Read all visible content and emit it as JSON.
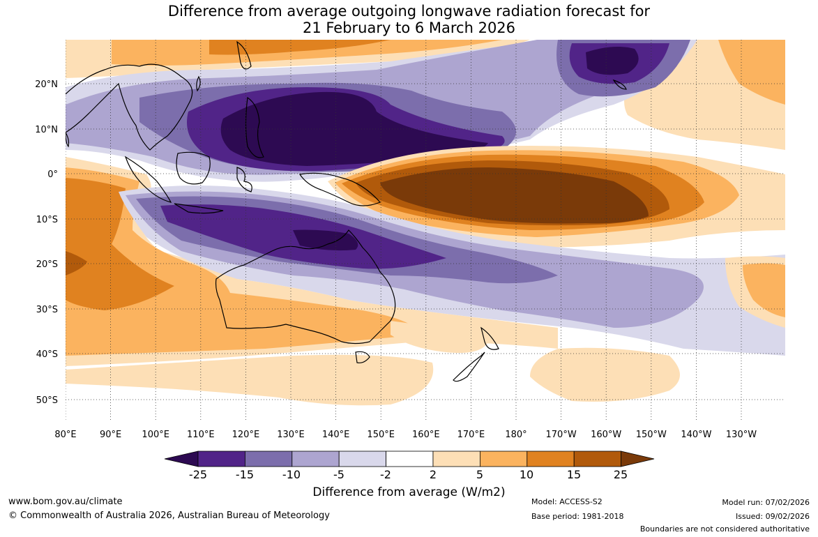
{
  "title": {
    "line1": "Difference from average outgoing longwave radiation forecast for",
    "line2": "21 February to 6 March 2026"
  },
  "map": {
    "lon_labels": [
      "80°E",
      "90°E",
      "100°E",
      "110°E",
      "120°E",
      "130°E",
      "140°E",
      "150°E",
      "160°E",
      "170°E",
      "180°",
      "170°W",
      "160°W",
      "150°W",
      "140°W",
      "130°W"
    ],
    "lat_labels": [
      "20°N",
      "10°N",
      "0°",
      "10°S",
      "20°S",
      "30°S",
      "40°S",
      "50°S"
    ],
    "lon_range": [
      80,
      232
    ],
    "lat_range": [
      -55,
      30
    ]
  },
  "colorbar": {
    "colors": [
      "#2d0a52",
      "#512488",
      "#7c6eac",
      "#ada5d0",
      "#d9d8eb",
      "#ffffff",
      "#fddfb6",
      "#fbb35f",
      "#e08220",
      "#b15a0b",
      "#7a3a09"
    ],
    "tick_labels": [
      "-25",
      "-15",
      "-10",
      "-5",
      "-2",
      "2",
      "5",
      "10",
      "15",
      "25"
    ],
    "title": "Difference from average (W/m2)"
  },
  "footer": {
    "website": "www.bom.gov.au/climate",
    "copyright": "© Commonwealth of Australia 2026, Australian Bureau of Meteorology",
    "model": "Model: ACCESS-S2",
    "base_period": "Base period: 1981-2018",
    "model_run": "Model run: 07/02/2026",
    "issued": "Issued: 09/02/2026",
    "boundaries": "Boundaries are not considered authoritative"
  }
}
